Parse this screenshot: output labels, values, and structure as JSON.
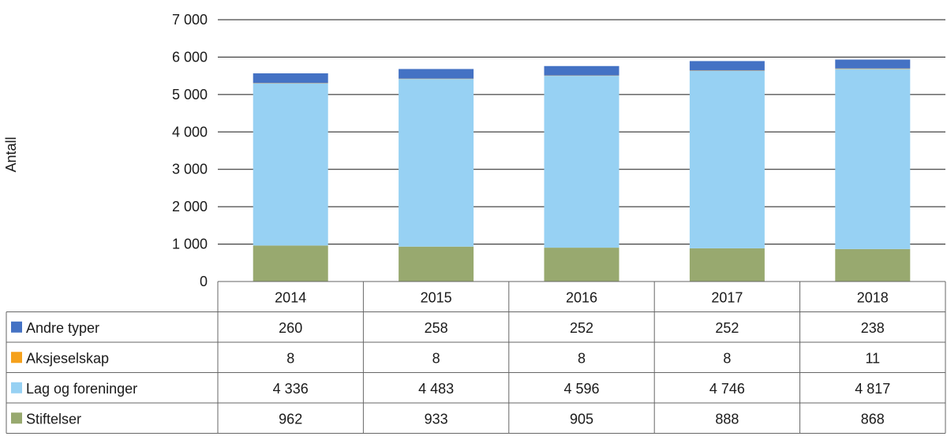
{
  "chart_data": {
    "type": "bar",
    "stacked": true,
    "ylabel": "Antall",
    "xlabel": "",
    "ylim": [
      0,
      7000
    ],
    "yticks": [
      0,
      1000,
      2000,
      3000,
      4000,
      5000,
      6000,
      7000
    ],
    "ytick_labels": [
      "0",
      "1 000",
      "2 000",
      "3 000",
      "4 000",
      "5 000",
      "6 000",
      "7 000"
    ],
    "grid": true,
    "legend": "data-table-left",
    "categories": [
      "2014",
      "2015",
      "2016",
      "2017",
      "2018"
    ],
    "series": [
      {
        "name": "Andre typer",
        "color": "#4472c4",
        "values": [
          260,
          258,
          252,
          252,
          238
        ],
        "labels": [
          "260",
          "258",
          "252",
          "252",
          "238"
        ]
      },
      {
        "name": "Aksjeselskap",
        "color": "#f5a11c",
        "values": [
          8,
          8,
          8,
          8,
          11
        ],
        "labels": [
          "8",
          "8",
          "8",
          "8",
          "11"
        ]
      },
      {
        "name": "Lag og foreninger",
        "color": "#97d1f3",
        "values": [
          4336,
          4483,
          4596,
          4746,
          4817
        ],
        "labels": [
          "4 336",
          "4 483",
          "4 596",
          "4 746",
          "4 817"
        ]
      },
      {
        "name": "Stiftelser",
        "color": "#98a96f",
        "values": [
          962,
          933,
          905,
          888,
          868
        ],
        "labels": [
          "962",
          "933",
          "905",
          "888",
          "868"
        ]
      }
    ]
  }
}
